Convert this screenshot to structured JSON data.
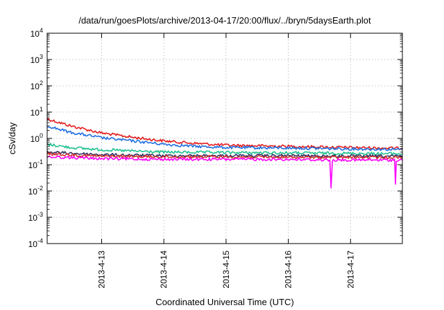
{
  "chart_data": {
    "type": "line",
    "title": "/data/run/goesPlots/archive/2013-04-17/20:00/flux/../bryn/5daysEarth.plot",
    "xlabel": "Coordinated Universal Time (UTC)",
    "ylabel": "cSv/day",
    "yscale": "log",
    "ylim": [
      0.0001,
      10000
    ],
    "y_ticks": [
      {
        "base": "10",
        "exp": "-4"
      },
      {
        "base": "10",
        "exp": "-3"
      },
      {
        "base": "10",
        "exp": "-2"
      },
      {
        "base": "10",
        "exp": "-1"
      },
      {
        "base": "10",
        "exp": "0"
      },
      {
        "base": "10",
        "exp": "1"
      },
      {
        "base": "10",
        "exp": "2"
      },
      {
        "base": "10",
        "exp": "3"
      },
      {
        "base": "10",
        "exp": "4"
      }
    ],
    "xlim": [
      "2013-04-12T03:00",
      "2013-04-17T20:00"
    ],
    "x_ticks": [
      "2013-4-13",
      "2013-4-14",
      "2013-4-15",
      "2013-4-16",
      "2013-4-17"
    ],
    "x_tick_dates": [
      "2013-04-13",
      "2013-04-14",
      "2013-04-15",
      "2013-04-16",
      "2013-04-17"
    ],
    "grid": true,
    "legend": "none",
    "series": [
      {
        "color": "#e41a1c",
        "x": [
          "2013-04-12T03:00",
          "2013-04-12T12:00",
          "2013-04-13T00:00",
          "2013-04-13T12:00",
          "2013-04-14T00:00",
          "2013-04-14T12:00",
          "2013-04-15T00:00",
          "2013-04-16T00:00",
          "2013-04-17T00:00",
          "2013-04-17T20:00"
        ],
        "values": [
          5.5,
          3.0,
          1.6,
          1.1,
          0.8,
          0.65,
          0.55,
          0.5,
          0.45,
          0.42
        ]
      },
      {
        "color": "#1f6fe0",
        "x": [
          "2013-04-12T03:00",
          "2013-04-12T12:00",
          "2013-04-13T00:00",
          "2013-04-13T12:00",
          "2013-04-14T00:00",
          "2013-04-14T12:00",
          "2013-04-15T00:00",
          "2013-04-16T00:00",
          "2013-04-17T00:00",
          "2013-04-17T20:00"
        ],
        "values": [
          3.0,
          1.7,
          1.05,
          0.8,
          0.6,
          0.5,
          0.45,
          0.43,
          0.4,
          0.38
        ]
      },
      {
        "color": "#20c090",
        "x": [
          "2013-04-12T03:00",
          "2013-04-12T12:00",
          "2013-04-13T00:00",
          "2013-04-13T12:00",
          "2013-04-14T00:00",
          "2013-04-15T00:00",
          "2013-04-16T00:00",
          "2013-04-17T00:00",
          "2013-04-17T20:00"
        ],
        "values": [
          0.6,
          0.45,
          0.37,
          0.33,
          0.3,
          0.29,
          0.28,
          0.27,
          0.26
        ]
      },
      {
        "color": "#303060",
        "x": [
          "2013-04-12T03:00",
          "2013-04-13T00:00",
          "2013-04-14T00:00",
          "2013-04-15T00:00",
          "2013-04-16T00:00",
          "2013-04-17T00:00",
          "2013-04-17T20:00"
        ],
        "values": [
          0.3,
          0.24,
          0.22,
          0.22,
          0.22,
          0.21,
          0.21
        ]
      },
      {
        "color": "#d03030",
        "x": [
          "2013-04-12T03:00",
          "2013-04-13T00:00",
          "2013-04-14T00:00",
          "2013-04-15T00:00",
          "2013-04-16T00:00",
          "2013-04-17T00:00",
          "2013-04-17T20:00"
        ],
        "values": [
          0.26,
          0.21,
          0.2,
          0.2,
          0.19,
          0.19,
          0.19
        ]
      },
      {
        "color": "#ff00ff",
        "x": [
          "2013-04-12T03:00",
          "2013-04-13T00:00",
          "2013-04-14T00:00",
          "2013-04-15T00:00",
          "2013-04-15T00:00",
          "2013-04-16T00:00",
          "2013-04-16T16:00",
          "2013-04-16T16:30",
          "2013-04-16T17:00",
          "2013-04-17T00:00",
          "2013-04-17T17:00",
          "2013-04-17T17:20",
          "2013-04-17T17:40",
          "2013-04-17T20:00"
        ],
        "values": [
          0.2,
          0.17,
          0.16,
          0.16,
          0.16,
          0.16,
          0.15,
          0.013,
          0.15,
          0.15,
          0.15,
          0.018,
          0.15,
          0.15
        ]
      }
    ]
  }
}
